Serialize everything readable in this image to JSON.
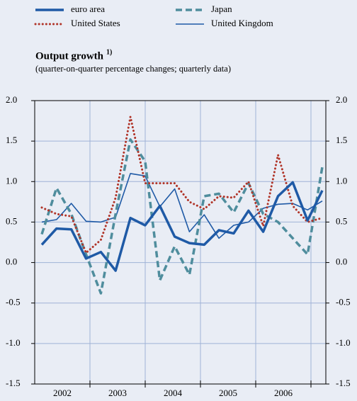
{
  "chart_data": {
    "type": "line",
    "title": "Output growth",
    "title_note": "1)",
    "subtitle": "(quarter-on-quarter percentage changes; quarterly data)",
    "year_labels": [
      "2002",
      "2003",
      "2004",
      "2005",
      "2006"
    ],
    "categories": [
      null,
      null,
      null,
      null,
      null,
      null,
      null,
      null,
      null,
      null,
      null,
      null,
      null,
      null,
      null,
      null,
      null,
      null,
      null,
      null
    ],
    "ylim": [
      -1.5,
      2.0
    ],
    "yticks": [
      {
        "value": -1.5,
        "label": "-1.5"
      },
      {
        "value": -1.0,
        "label": "-1.0"
      },
      {
        "value": -0.5,
        "label": "-0.5"
      },
      {
        "value": 0,
        "label": "0.0"
      },
      {
        "value": 0.5,
        "label": "0.5"
      },
      {
        "value": 1.0,
        "label": "1.0"
      },
      {
        "value": 1.5,
        "label": "1.5"
      },
      {
        "value": 2.0,
        "label": "2.0"
      }
    ],
    "grid": true,
    "series": [
      {
        "name": "euro area",
        "color": "#1f5aa6",
        "style": "solid-thick",
        "values": [
          0.22,
          0.42,
          0.41,
          0.05,
          0.13,
          -0.1,
          0.55,
          0.46,
          0.7,
          0.32,
          0.24,
          0.22,
          0.4,
          0.36,
          0.64,
          0.38,
          0.82,
          0.99,
          0.52,
          0.89
        ]
      },
      {
        "name": "United States",
        "color": "#b03428",
        "style": "dotted",
        "values": [
          0.68,
          0.6,
          0.57,
          0.12,
          0.28,
          0.8,
          1.8,
          0.98,
          0.98,
          0.98,
          0.75,
          0.66,
          0.82,
          0.8,
          1.0,
          0.45,
          1.33,
          0.7,
          0.5,
          0.55
        ]
      },
      {
        "name": "Japan",
        "color": "#4f8d9d",
        "style": "dashed",
        "values": [
          0.35,
          0.92,
          0.6,
          0.1,
          -0.38,
          0.6,
          1.52,
          1.25,
          -0.22,
          0.2,
          -0.15,
          0.82,
          0.85,
          0.62,
          0.98,
          0.6,
          0.5,
          0.3,
          0.1,
          1.18
        ]
      },
      {
        "name": "United Kingdom",
        "color": "#1f5aa6",
        "style": "solid-thin",
        "values": [
          0.5,
          0.53,
          0.73,
          0.51,
          0.5,
          0.56,
          1.1,
          1.07,
          0.69,
          0.91,
          0.38,
          0.59,
          0.3,
          0.46,
          0.5,
          0.67,
          0.72,
          0.73,
          0.65,
          0.76
        ]
      }
    ]
  }
}
